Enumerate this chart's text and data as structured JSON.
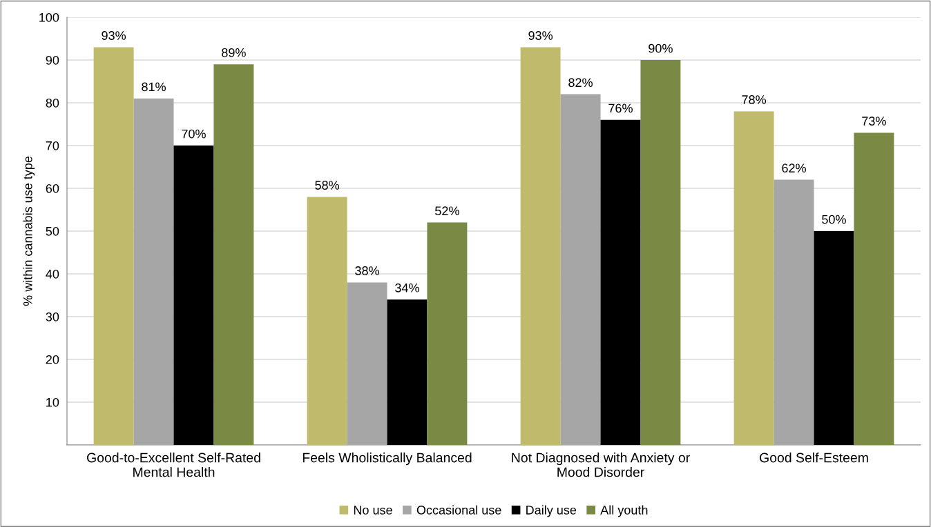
{
  "chart_data": {
    "type": "bar",
    "ylabel": "% within cannabis use type",
    "categories": [
      "Good-to-Excellent Self-Rated\nMental Health",
      "Feels Wholistically Balanced",
      "Not Diagnosed with Anxiety or\nMood Disorder",
      "Good Self-Esteem"
    ],
    "series": [
      {
        "name": "No use",
        "color": "#c0ba6c",
        "values": [
          93,
          58,
          93,
          78
        ],
        "value_labels": [
          "93%",
          "58%",
          "93%",
          "78%"
        ]
      },
      {
        "name": "Occasional use",
        "color": "#a6a6a6",
        "values": [
          81,
          38,
          82,
          62
        ],
        "value_labels": [
          "81%",
          "38%",
          "82%",
          "62%"
        ]
      },
      {
        "name": "Daily use",
        "color": "#000000",
        "values": [
          70,
          34,
          76,
          50
        ],
        "value_labels": [
          "70%",
          "34%",
          "76%",
          "50%"
        ]
      },
      {
        "name": "All youth",
        "color": "#7a8a45",
        "values": [
          89,
          52,
          90,
          73
        ],
        "value_labels": [
          "89%",
          "52%",
          "90%",
          "73%"
        ]
      }
    ],
    "ylim": [
      0,
      100
    ],
    "yticks": [
      {
        "value": 0,
        "label": null
      },
      10,
      20,
      30,
      40,
      50,
      60,
      70,
      80,
      90,
      100
    ],
    "grid": "y",
    "legend": "bottom"
  }
}
